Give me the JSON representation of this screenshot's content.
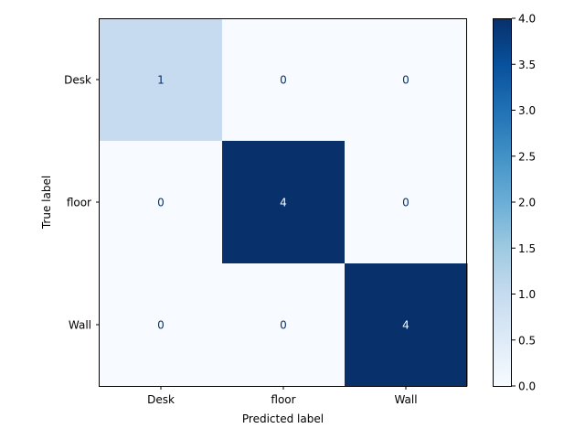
{
  "chart_data": {
    "type": "heatmap",
    "title": "",
    "xlabel": "Predicted label",
    "ylabel": "True label",
    "x_categories": [
      "Desk",
      "floor",
      "Wall"
    ],
    "y_categories": [
      "Desk",
      "floor",
      "Wall"
    ],
    "matrix": [
      [
        1,
        0,
        0
      ],
      [
        0,
        4,
        0
      ],
      [
        0,
        0,
        4
      ]
    ],
    "colormap": "Blues",
    "value_range": [
      0,
      4
    ],
    "colorbar": {
      "ticks": [
        "0.0",
        "0.5",
        "1.0",
        "1.5",
        "2.0",
        "2.5",
        "3.0",
        "3.5",
        "4.0"
      ],
      "range": [
        0,
        4
      ]
    },
    "grid": false,
    "colors": {
      "low": "#f7fbff",
      "high": "#08306b",
      "text_on_light": "#08306b",
      "text_on_dark": "#f7fbff",
      "axis": "#000000"
    }
  }
}
